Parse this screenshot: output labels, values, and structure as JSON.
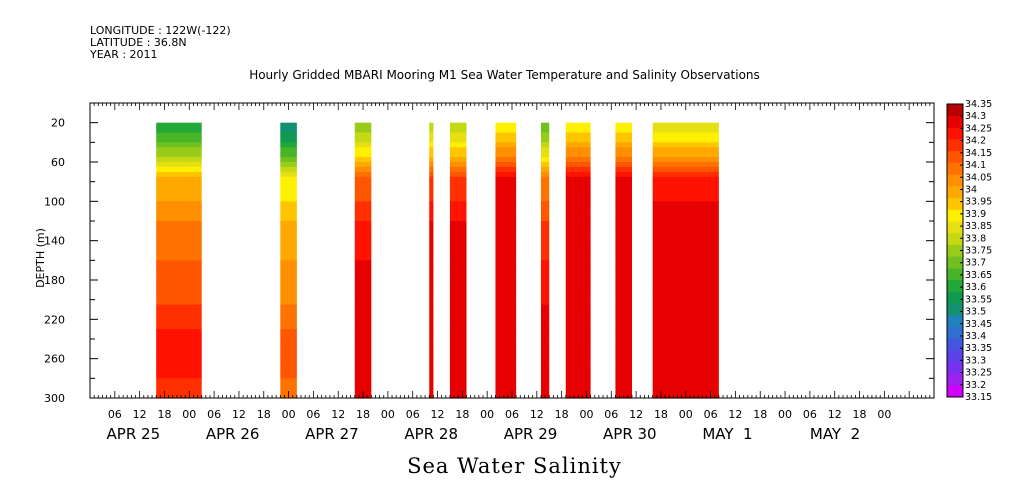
{
  "header": {
    "longitude": "LONGITUDE : 122W(-122)",
    "latitude": "LATITUDE : 36.8N",
    "year": "YEAR : 2011"
  },
  "chart_data": {
    "type": "heatmap",
    "title": "Hourly Gridded MBARI Mooring M1 Sea Water Temperature and Salinity Observations",
    "subtitle": "Sea Water Salinity",
    "xlabel": "",
    "ylabel": "DEPTH (m)",
    "x_axis": {
      "start_hour": 0,
      "end_hour": 204,
      "hour_ticks": [
        {
          "h": 6,
          "label": "06"
        },
        {
          "h": 12,
          "label": "12"
        },
        {
          "h": 18,
          "label": "18"
        },
        {
          "h": 24,
          "label": "00"
        },
        {
          "h": 30,
          "label": "06"
        },
        {
          "h": 36,
          "label": "12"
        },
        {
          "h": 42,
          "label": "18"
        },
        {
          "h": 48,
          "label": "00"
        },
        {
          "h": 54,
          "label": "06"
        },
        {
          "h": 60,
          "label": "12"
        },
        {
          "h": 66,
          "label": "18"
        },
        {
          "h": 72,
          "label": "00"
        },
        {
          "h": 78,
          "label": "06"
        },
        {
          "h": 84,
          "label": "12"
        },
        {
          "h": 90,
          "label": "18"
        },
        {
          "h": 96,
          "label": "00"
        },
        {
          "h": 102,
          "label": "06"
        },
        {
          "h": 108,
          "label": "12"
        },
        {
          "h": 114,
          "label": "18"
        },
        {
          "h": 120,
          "label": "00"
        },
        {
          "h": 126,
          "label": "06"
        },
        {
          "h": 132,
          "label": "12"
        },
        {
          "h": 138,
          "label": "18"
        },
        {
          "h": 144,
          "label": "00"
        },
        {
          "h": 150,
          "label": "06"
        },
        {
          "h": 156,
          "label": "12"
        },
        {
          "h": 162,
          "label": "18"
        },
        {
          "h": 168,
          "label": "00"
        },
        {
          "h": 174,
          "label": "06"
        },
        {
          "h": 180,
          "label": "12"
        },
        {
          "h": 186,
          "label": "18"
        },
        {
          "h": 192,
          "label": "00"
        }
      ],
      "day_labels": [
        {
          "h": 4,
          "label": "APR 25"
        },
        {
          "h": 28,
          "label": "APR 26"
        },
        {
          "h": 52,
          "label": "APR 27"
        },
        {
          "h": 76,
          "label": "APR 28"
        },
        {
          "h": 100,
          "label": "APR 29"
        },
        {
          "h": 124,
          "label": "APR 30"
        },
        {
          "h": 148,
          "label": "MAY  1"
        },
        {
          "h": 174,
          "label": "MAY  2"
        }
      ]
    },
    "y_axis": {
      "range": [
        0,
        300
      ],
      "inverted": true,
      "ticks": [
        20,
        60,
        100,
        140,
        180,
        220,
        260,
        300
      ]
    },
    "data_extent": {
      "top_depth": 20,
      "bottom_depth": 300
    },
    "colorbar": {
      "levels": [
        "33.15",
        "33.2",
        "33.25",
        "33.3",
        "33.35",
        "33.4",
        "33.45",
        "33.5",
        "33.55",
        "33.6",
        "33.65",
        "33.7",
        "33.75",
        "33.8",
        "33.85",
        "33.9",
        "33.95",
        "34",
        "34.05",
        "34.1",
        "34.15",
        "34.2",
        "34.25",
        "34.3",
        "34.35"
      ],
      "colors": [
        "#d200ff",
        "#a020f0",
        "#7a30f0",
        "#5a42e8",
        "#4455e0",
        "#2f6fd0",
        "#1f82b8",
        "#129070",
        "#109a50",
        "#22a838",
        "#48b428",
        "#70c020",
        "#98cc18",
        "#c4d814",
        "#e6e012",
        "#fff000",
        "#ffc600",
        "#ffa800",
        "#ff8e00",
        "#ff7200",
        "#ff5600",
        "#ff3000",
        "#ff1200",
        "#e60000",
        "#b80000"
      ]
    },
    "segments": [
      {
        "start": 16,
        "end": 27,
        "surface": 33.6
      },
      {
        "start": 46,
        "end": 50,
        "surface": 33.5
      },
      {
        "start": 64,
        "end": 68,
        "surface": 33.75
      },
      {
        "start": 82,
        "end": 83,
        "surface": 33.8
      },
      {
        "start": 87,
        "end": 91,
        "surface": 33.8
      },
      {
        "start": 98,
        "end": 103,
        "surface": 33.9
      },
      {
        "start": 109,
        "end": 111,
        "surface": 33.7
      },
      {
        "start": 115,
        "end": 121,
        "surface": 33.9
      },
      {
        "start": 127,
        "end": 131,
        "surface": 33.9
      },
      {
        "start": 136,
        "end": 152,
        "surface": 33.85
      }
    ],
    "profile": [
      {
        "depth": 20,
        "offset": 0
      },
      {
        "depth": 40,
        "offset": 0.1
      },
      {
        "depth": 60,
        "offset": 0.25
      },
      {
        "depth": 75,
        "offset": 0.4
      },
      {
        "depth": 100,
        "offset": 0.45
      },
      {
        "depth": 130,
        "offset": 0.52
      },
      {
        "depth": 180,
        "offset": 0.57
      },
      {
        "depth": 220,
        "offset": 0.62
      },
      {
        "depth": 250,
        "offset": 0.7
      },
      {
        "depth": 270,
        "offset": 0.68
      },
      {
        "depth": 300,
        "offset": 0.6
      }
    ]
  }
}
